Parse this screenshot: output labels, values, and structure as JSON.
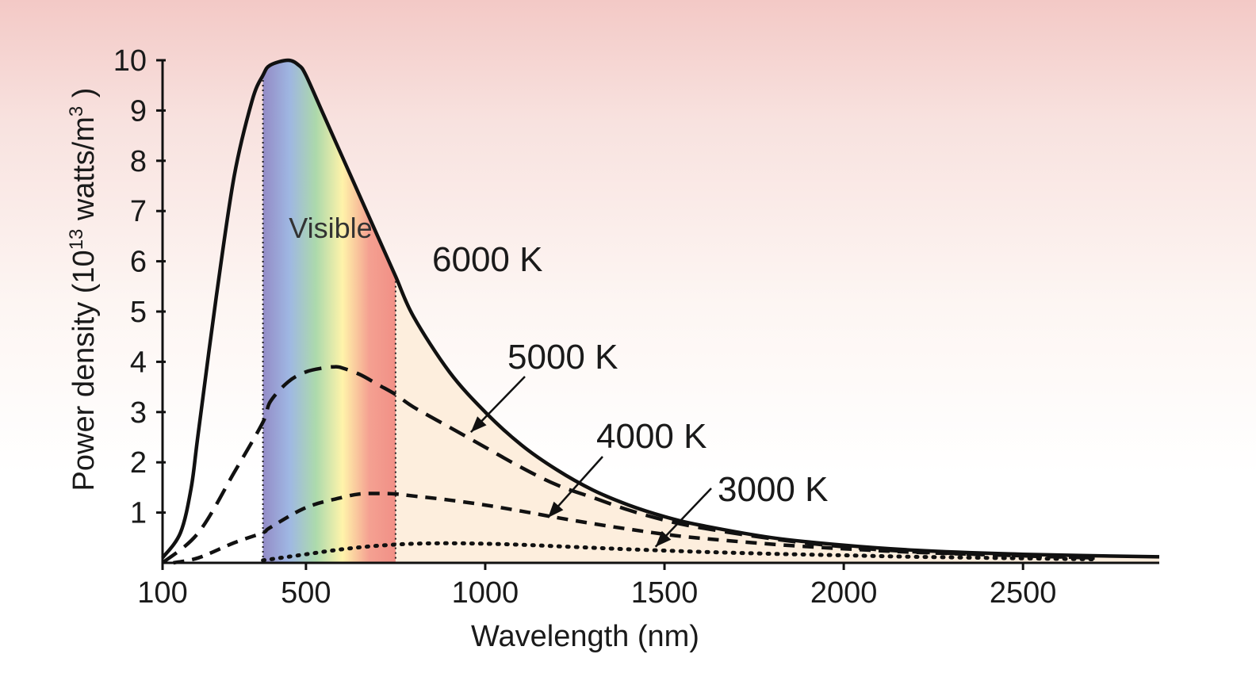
{
  "chart_data": {
    "type": "line",
    "title": "",
    "xlabel": "Wavelength (nm)",
    "ylabel": {
      "prefix": "Power density (10",
      "exp1": "13",
      "mid": " watts/m",
      "exp2": "3",
      "suffix": " )"
    },
    "xlim": [
      100,
      2880
    ],
    "ylim": [
      0,
      10
    ],
    "x_ticks": [
      100,
      500,
      1000,
      1500,
      2000,
      2500
    ],
    "x_tick_labels": [
      "100",
      "500",
      "1000",
      "1500",
      "2000",
      "2500"
    ],
    "y_ticks": [
      1,
      2,
      3,
      4,
      5,
      6,
      7,
      8,
      9,
      10
    ],
    "y_tick_labels": [
      "1",
      "2",
      "3",
      "4",
      "5",
      "6",
      "7",
      "8",
      "9",
      "10"
    ],
    "grid": false,
    "visible_band": {
      "label": "Visible",
      "range": [
        380,
        750
      ],
      "colors": [
        "#8e86c4",
        "#9ab4e2",
        "#a8d8a8",
        "#fff3a6",
        "#f49c8c",
        "#f08a80"
      ]
    },
    "series": [
      {
        "name": "6000 K",
        "style": "solid",
        "x": [
          100,
          150,
          180,
          200,
          250,
          300,
          350,
          380,
          400,
          450,
          480,
          500,
          550,
          600,
          650,
          700,
          750,
          800,
          900,
          1000,
          1100,
          1200,
          1300,
          1400,
          1500,
          1600,
          1800,
          2000,
          2200,
          2500,
          2880
        ],
        "values": [
          0.1,
          0.6,
          1.5,
          2.6,
          5.3,
          7.7,
          9.2,
          9.7,
          9.9,
          10.0,
          9.9,
          9.7,
          8.9,
          8.1,
          7.3,
          6.5,
          5.7,
          4.9,
          3.8,
          3.0,
          2.35,
          1.85,
          1.45,
          1.15,
          0.92,
          0.75,
          0.5,
          0.35,
          0.25,
          0.17,
          0.12
        ]
      },
      {
        "name": "5000 K",
        "style": "dashed",
        "x": [
          100,
          200,
          300,
          380,
          400,
          450,
          500,
          550,
          580,
          600,
          650,
          700,
          750,
          800,
          900,
          1000,
          1100,
          1200,
          1300,
          1400,
          1500,
          1600,
          1800,
          2000,
          2200,
          2500,
          2700
        ],
        "values": [
          0.0,
          0.6,
          1.8,
          2.8,
          3.2,
          3.6,
          3.8,
          3.88,
          3.9,
          3.88,
          3.75,
          3.55,
          3.35,
          3.1,
          2.7,
          2.3,
          1.9,
          1.55,
          1.3,
          1.05,
          0.85,
          0.7,
          0.48,
          0.32,
          0.22,
          0.14,
          0.1
        ]
      },
      {
        "name": "4000 K",
        "style": "dashed",
        "x": [
          130,
          200,
          300,
          380,
          400,
          500,
          600,
          650,
          700,
          750,
          800,
          900,
          1000,
          1100,
          1200,
          1300,
          1400,
          1500,
          1600,
          1800,
          2000,
          2200,
          2500,
          2700
        ],
        "values": [
          0.0,
          0.1,
          0.4,
          0.6,
          0.7,
          1.1,
          1.3,
          1.37,
          1.38,
          1.37,
          1.33,
          1.25,
          1.15,
          1.03,
          0.9,
          0.78,
          0.67,
          0.57,
          0.49,
          0.37,
          0.28,
          0.21,
          0.14,
          0.1
        ]
      },
      {
        "name": "3000 K",
        "style": "dotted",
        "x": [
          380,
          400,
          500,
          600,
          700,
          800,
          900,
          1000,
          1100,
          1200,
          1300,
          1400,
          1600,
          1800,
          2000,
          2200,
          2500,
          2700
        ],
        "values": [
          0.05,
          0.07,
          0.17,
          0.27,
          0.34,
          0.38,
          0.39,
          0.38,
          0.36,
          0.33,
          0.3,
          0.27,
          0.22,
          0.18,
          0.15,
          0.12,
          0.09,
          0.07
        ]
      }
    ],
    "annotations": [
      {
        "text": "6000 K",
        "series": "6000 K",
        "arrow": false
      },
      {
        "text": "5000 K",
        "series": "5000 K",
        "arrow": true,
        "arrow_tip": [
          960,
          2.6
        ]
      },
      {
        "text": "4000 K",
        "series": "4000 K",
        "arrow": true,
        "arrow_tip": [
          1175,
          0.9
        ]
      },
      {
        "text": "3000 K",
        "series": "3000 K",
        "arrow": true,
        "arrow_tip": [
          1475,
          0.32
        ]
      }
    ]
  }
}
